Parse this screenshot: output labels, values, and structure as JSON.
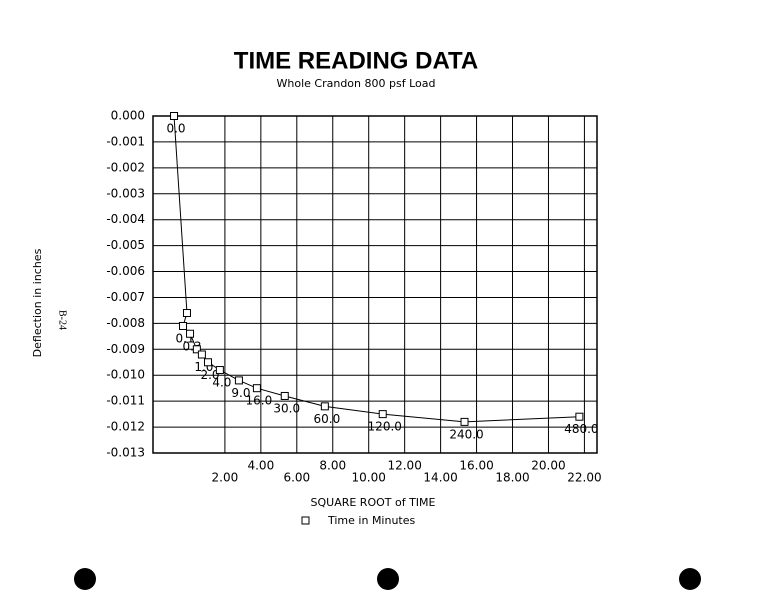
{
  "chart_data": {
    "type": "line",
    "title": "TIME READING DATA",
    "subtitle": "Whole Crandon 800 psf Load",
    "x_label": "SQUARE ROOT of TIME",
    "y_label": "Deflection in inches",
    "side_note": "B-24",
    "series": [
      {
        "name": "Time in Minutes",
        "color": "#000000",
        "x": [
          -0.83,
          -0.11,
          -0.33,
          0.06,
          0.44,
          0.72,
          1.06,
          1.72,
          2.78,
          3.78,
          5.33,
          7.56,
          10.78,
          15.33,
          21.72
        ],
        "values": [
          0,
          -0.0076,
          -0.0081,
          -0.0084,
          -0.009,
          -0.0092,
          -0.0095,
          -0.0098,
          -0.0102,
          -0.0105,
          -0.0108,
          -0.0112,
          -0.0115,
          -0.0118,
          -0.0116
        ],
        "point_labels": [
          "0.0",
          null,
          "0.1",
          "0.3",
          null,
          "1.0",
          "2.0",
          "4.0",
          "9.0",
          "16.0",
          "30.0",
          "60.0",
          "120.0",
          "240.0",
          "480.0"
        ]
      }
    ],
    "xlim": [
      -2,
      22.7
    ],
    "xticks": [
      {
        "value": 2,
        "label": "2.00"
      },
      {
        "value": 4,
        "label": "4.00"
      },
      {
        "value": 6,
        "label": "6.00"
      },
      {
        "value": 8,
        "label": "8.00"
      },
      {
        "value": 10,
        "label": "10.00"
      },
      {
        "value": 12,
        "label": "12.00"
      },
      {
        "value": 14,
        "label": "14.00"
      },
      {
        "value": 16,
        "label": "16.00"
      },
      {
        "value": 18,
        "label": "18.00"
      },
      {
        "value": 20,
        "label": "20.00"
      },
      {
        "value": 22,
        "label": "22.00"
      }
    ],
    "ylim": [
      -0.013,
      0
    ],
    "yticks": [
      {
        "value": 0,
        "label": "0.000"
      },
      {
        "value": -0.001,
        "label": "-0.001"
      },
      {
        "value": -0.002,
        "label": "-0.002"
      },
      {
        "value": -0.003,
        "label": "-0.003"
      },
      {
        "value": -0.004,
        "label": "-0.004"
      },
      {
        "value": -0.005,
        "label": "-0.005"
      },
      {
        "value": -0.006,
        "label": "-0.006"
      },
      {
        "value": -0.007,
        "label": "-0.007"
      },
      {
        "value": -0.008,
        "label": "-0.008"
      },
      {
        "value": -0.009,
        "label": "-0.009"
      },
      {
        "value": -0.01,
        "label": "-0.010"
      },
      {
        "value": -0.011,
        "label": "-0.011"
      },
      {
        "value": -0.012,
        "label": "-0.012"
      },
      {
        "value": -0.013,
        "label": "-0.013"
      }
    ],
    "grid": true
  }
}
